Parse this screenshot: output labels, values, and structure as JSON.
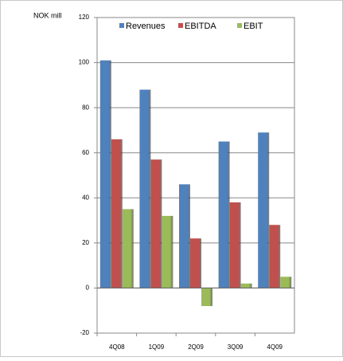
{
  "chart_data": {
    "type": "bar",
    "y_label": "NOK mill",
    "categories": [
      "4Q08",
      "1Q09",
      "2Q09",
      "3Q09",
      "4Q09"
    ],
    "series": [
      {
        "name": "Revenues",
        "color": "#4f81bd",
        "values": [
          101,
          88,
          46,
          65,
          69
        ]
      },
      {
        "name": "EBITDA",
        "color": "#c0504d",
        "values": [
          66,
          57,
          22,
          38,
          28
        ]
      },
      {
        "name": "EBIT",
        "color": "#9bbb59",
        "values": [
          35,
          32,
          -8,
          2,
          5
        ]
      }
    ],
    "ylim": [
      -20,
      120
    ],
    "yticks": [
      -20,
      0,
      20,
      40,
      60,
      80,
      100,
      120
    ],
    "grid": true,
    "legend": "top"
  }
}
